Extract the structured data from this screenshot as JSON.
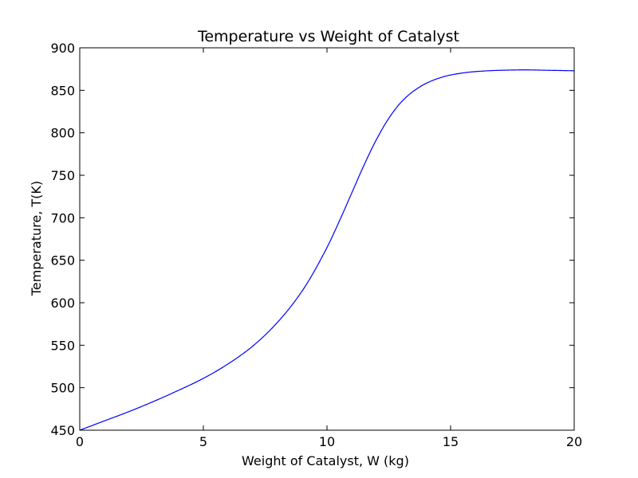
{
  "chart_data": {
    "type": "line",
    "title": "Temperature vs Weight of Catalyst",
    "xlabel": "Weight of Catalyst, W (kg)",
    "ylabel": "Temperature, T(K)",
    "xlim": [
      0,
      20
    ],
    "ylim": [
      450,
      900
    ],
    "xticks": [
      0,
      5,
      10,
      15,
      20
    ],
    "yticks": [
      450,
      500,
      550,
      600,
      650,
      700,
      750,
      800,
      850,
      900
    ],
    "grid": false,
    "legend": "none",
    "series": [
      {
        "color": "#0000ff",
        "x": [
          0,
          1,
          2,
          3,
          4,
          5,
          6,
          7,
          8,
          9,
          10,
          10.5,
          11,
          11.5,
          12,
          12.5,
          13,
          13.5,
          14,
          14.5,
          15,
          16,
          17,
          18,
          19,
          20
        ],
        "y": [
          450,
          461,
          472,
          484,
          497,
          511,
          528,
          549,
          577,
          614,
          665,
          696,
          729,
          762,
          792,
          817,
          836,
          849,
          858,
          864,
          868,
          872,
          873.5,
          874,
          873.5,
          873
        ]
      }
    ]
  }
}
